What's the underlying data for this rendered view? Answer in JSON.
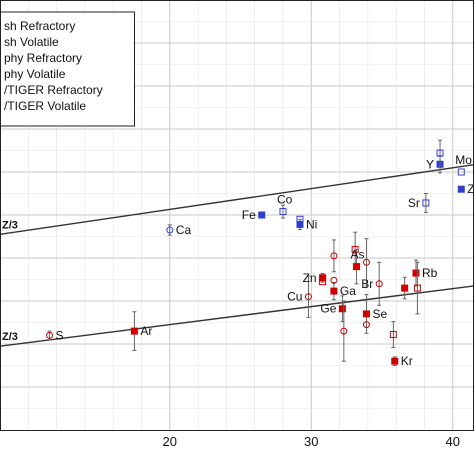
{
  "chart_data": {
    "type": "scatter",
    "xlim": [
      8,
      41.5
    ],
    "ylim": [
      0,
      1
    ],
    "x_ticks": [
      20,
      30,
      40
    ],
    "grid": true,
    "legend": {
      "placement": "top-left",
      "entries": [
        {
          "label": "sh Refractory",
          "marker": "open-square",
          "color": "#2f3fd0"
        },
        {
          "label": "sh Volatile",
          "marker": "open-square",
          "color": "#d62728"
        },
        {
          "label": "phy Refractory",
          "marker": "filled-square",
          "color": "#1f2fd8"
        },
        {
          "label": "phy Volatile",
          "marker": "filled-square",
          "color": "#d00000"
        },
        {
          "label": "/TIGER Refractory",
          "marker": "open-circle",
          "color": "#2f3fd0"
        },
        {
          "label": "/TIGER Volatile",
          "marker": "open-circle",
          "color": "#d62728"
        }
      ]
    },
    "fit_lines": [
      {
        "label": "Z/3",
        "x": [
          8,
          41.5
        ],
        "y": [
          0.455,
          0.617
        ]
      },
      {
        "label": "Z/3",
        "x": [
          8,
          41.5
        ],
        "y": [
          0.195,
          0.335
        ]
      }
    ],
    "series": [
      {
        "name": "Refractory",
        "color": "#2f3fd0",
        "points": [
          {
            "x": 20,
            "y": 0.465,
            "err": 0.012,
            "label": "Ca",
            "marker": "open-circle"
          },
          {
            "x": 26.5,
            "y": 0.5,
            "err": 0,
            "label": "Fe",
            "marker": "filled-square"
          },
          {
            "x": 28,
            "y": 0.508,
            "err": 0.015,
            "label": "Co",
            "marker": "open-square"
          },
          {
            "x": 29.2,
            "y": 0.478,
            "err": 0.012,
            "label": "Ni",
            "marker": "filled-square"
          },
          {
            "x": 29.2,
            "y": 0.49,
            "err": 0,
            "label": "",
            "marker": "open-square"
          },
          {
            "x": 38.1,
            "y": 0.528,
            "err": 0.022,
            "label": "Sr",
            "marker": "open-square"
          },
          {
            "x": 39.1,
            "y": 0.618,
            "err": 0.02,
            "label": "Y",
            "marker": "filled-square"
          },
          {
            "x": 39.1,
            "y": 0.644,
            "err": 0.03,
            "label": "",
            "marker": "open-square"
          },
          {
            "x": 40.6,
            "y": 0.56,
            "err": 0,
            "label": "Z",
            "marker": "filled-square"
          },
          {
            "x": 40.6,
            "y": 0.6,
            "err": 0,
            "label": "Mo",
            "marker": "open-square"
          }
        ]
      },
      {
        "name": "Volatile",
        "color": "#d00000",
        "points": [
          {
            "x": 11.5,
            "y": 0.22,
            "err": 0.01,
            "label": "S",
            "marker": "open-circle"
          },
          {
            "x": 17.5,
            "y": 0.23,
            "err": 0.045,
            "label": "Ar",
            "marker": "filled-square"
          },
          {
            "x": 29.8,
            "y": 0.31,
            "err": 0.048,
            "label": "Cu",
            "marker": "open-circle"
          },
          {
            "x": 30.8,
            "y": 0.354,
            "err": 0.01,
            "label": "Zn",
            "marker": "filled-square"
          },
          {
            "x": 30.8,
            "y": 0.345,
            "err": 0,
            "label": "",
            "marker": "open-square"
          },
          {
            "x": 31.6,
            "y": 0.405,
            "err": 0.037,
            "label": "",
            "marker": "open-circle"
          },
          {
            "x": 31.6,
            "y": 0.323,
            "err": 0.02,
            "label": "Ga",
            "marker": "filled-square"
          },
          {
            "x": 31.6,
            "y": 0.348,
            "err": 0,
            "label": "",
            "marker": "open-circle"
          },
          {
            "x": 32.2,
            "y": 0.282,
            "err": 0.03,
            "label": "Ge",
            "marker": "filled-square"
          },
          {
            "x": 32.3,
            "y": 0.23,
            "err": 0.07,
            "label": "",
            "marker": "open-circle"
          },
          {
            "x": 33.1,
            "y": 0.42,
            "err": 0.04,
            "label": "",
            "marker": "open-square"
          },
          {
            "x": 33.2,
            "y": 0.38,
            "err": 0.04,
            "label": "As",
            "marker": "filled-square"
          },
          {
            "x": 33.9,
            "y": 0.39,
            "err": 0.055,
            "label": "",
            "marker": "open-circle"
          },
          {
            "x": 33.9,
            "y": 0.27,
            "err": 0.045,
            "label": "Se",
            "marker": "filled-square"
          },
          {
            "x": 33.9,
            "y": 0.245,
            "err": 0,
            "label": "",
            "marker": "open-circle"
          },
          {
            "x": 34.8,
            "y": 0.34,
            "err": 0.05,
            "label": "Br",
            "marker": "open-circle"
          },
          {
            "x": 35.9,
            "y": 0.16,
            "err": 0.01,
            "label": "Kr",
            "marker": "filled-square"
          },
          {
            "x": 35.8,
            "y": 0.222,
            "err": 0.03,
            "label": "",
            "marker": "open-square"
          },
          {
            "x": 36.6,
            "y": 0.33,
            "err": 0.025,
            "label": "",
            "marker": "filled-square"
          },
          {
            "x": 37.4,
            "y": 0.365,
            "err": 0.03,
            "label": "Rb",
            "marker": "filled-square"
          },
          {
            "x": 37.5,
            "y": 0.33,
            "err": 0.06,
            "label": "",
            "marker": "open-square"
          }
        ]
      }
    ]
  }
}
